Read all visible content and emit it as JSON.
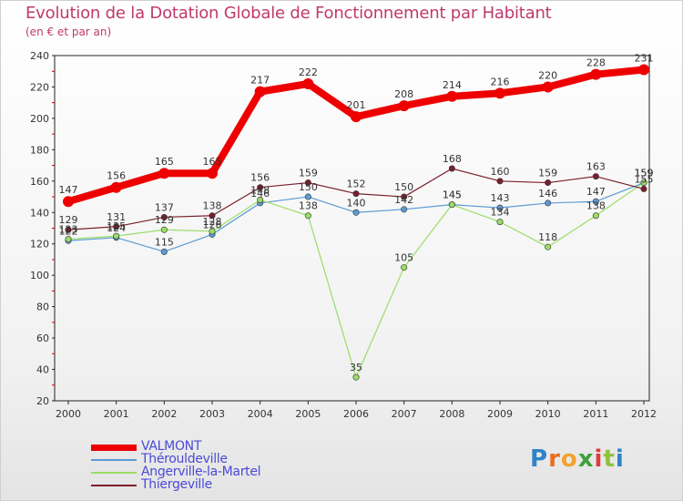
{
  "header": {
    "title": "Evolution de la Dotation Globale de Fonctionnement par Habitant",
    "subtitle": "(en € et par an)"
  },
  "logo": {
    "letters": [
      "P",
      "r",
      "o",
      "x",
      "i",
      "t",
      "i"
    ]
  },
  "chart_data": {
    "type": "line",
    "title": "Evolution de la Dotation Globale de Fonctionnement par Habitant",
    "subtitle": "(en € et par an)",
    "xlabel": "",
    "ylabel": "",
    "ylim": [
      20,
      240
    ],
    "yticks": [
      20,
      40,
      60,
      80,
      100,
      120,
      140,
      160,
      180,
      200,
      220,
      240
    ],
    "grid": false,
    "legend_position": "bottom-left",
    "x": [
      "2000",
      "2001",
      "2002",
      "2003",
      "2004",
      "2005",
      "2006",
      "2007",
      "2008",
      "2009",
      "2010",
      "2011",
      "2012"
    ],
    "series": [
      {
        "name": "VALMONT",
        "color": "#ee0000",
        "values": [
          147,
          156,
          165,
          165,
          217,
          222,
          201,
          208,
          214,
          216,
          220,
          228,
          231
        ]
      },
      {
        "name": "Thérouldeville",
        "color": "#5b9ad5",
        "values": [
          122,
          124,
          115,
          126,
          146,
          150,
          140,
          142,
          145,
          143,
          146,
          147,
          159
        ]
      },
      {
        "name": "Angerville-la-Martel",
        "color": "#99dd66",
        "values": [
          123,
          125,
          129,
          128,
          148,
          138,
          35,
          105,
          145,
          134,
          118,
          138,
          159
        ]
      },
      {
        "name": "Thiergeville",
        "color": "#7a1f2b",
        "values": [
          129,
          131,
          137,
          138,
          156,
          159,
          152,
          150,
          168,
          160,
          159,
          163,
          155
        ]
      }
    ]
  }
}
